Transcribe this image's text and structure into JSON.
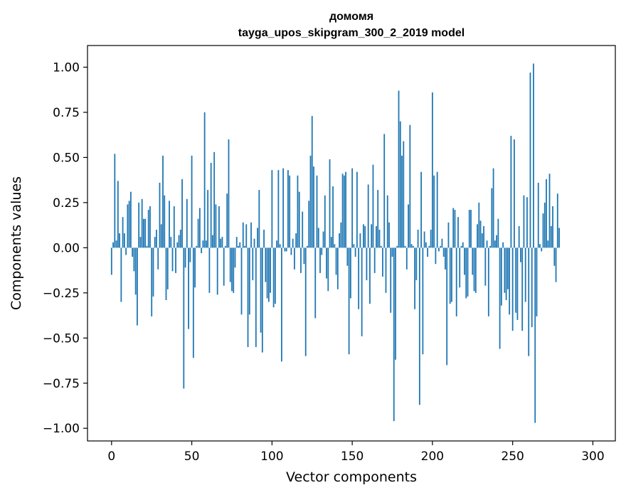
{
  "chart_data": {
    "type": "bar",
    "title_line1": "домомя",
    "title_line2": "tayga_upos_skipgram_300_2_2019 model",
    "xlabel": "Vector components",
    "ylabel": "Components values",
    "xlim": [
      -15,
      314
    ],
    "ylim": [
      -1.07,
      1.12
    ],
    "xticks": [
      0,
      50,
      100,
      150,
      200,
      250,
      300
    ],
    "yticks": [
      1.0,
      0.75,
      0.5,
      0.25,
      0.0,
      -0.25,
      -0.5,
      -0.75,
      -1.0
    ],
    "ytick_labels": [
      "1.00",
      "0.75",
      "0.50",
      "0.25",
      "0.00",
      "−0.25",
      "−0.50",
      "−0.75",
      "−1.00"
    ],
    "grid": false,
    "legend": "none",
    "bar_color": "#1f77b4",
    "values": [
      -0.15,
      0.03,
      0.52,
      0.04,
      0.37,
      0.08,
      -0.3,
      0.17,
      0.08,
      -0.04,
      0.24,
      0.26,
      0.31,
      -0.05,
      -0.13,
      -0.26,
      -0.43,
      0.25,
      0.06,
      0.27,
      0.16,
      0.16,
      0.01,
      0.21,
      0.23,
      -0.38,
      -0.27,
      0.06,
      0.1,
      -0.12,
      0.36,
      0.13,
      0.51,
      0.29,
      -0.29,
      -0.23,
      0.26,
      0.06,
      -0.13,
      0.23,
      -0.14,
      0.03,
      0.07,
      0.1,
      0.38,
      -0.78,
      -0.11,
      0.27,
      -0.45,
      -0.08,
      0.51,
      -0.61,
      -0.22,
      0.01,
      0.16,
      0.22,
      -0.03,
      0.04,
      0.75,
      0.04,
      0.32,
      -0.25,
      0.47,
      0.07,
      0.53,
      0.24,
      -0.26,
      0.23,
      0.05,
      0.06,
      -0.21,
      0.01,
      0.3,
      0.6,
      -0.19,
      -0.24,
      -0.25,
      -0.11,
      0.06,
      0.01,
      0.03,
      -0.37,
      0.14,
      0.01,
      0.13,
      -0.55,
      -0.37,
      0.14,
      -0.18,
      0.05,
      -0.55,
      0.11,
      0.32,
      -0.47,
      -0.58,
      0.1,
      -0.19,
      -0.28,
      -0.3,
      -0.25,
      0.43,
      -0.33,
      -0.31,
      0.04,
      0.43,
      0.02,
      -0.63,
      0.44,
      -0.02,
      -0.02,
      0.43,
      0.4,
      -0.04,
      0.05,
      -0.12,
      0.08,
      0.4,
      0.31,
      -0.14,
      0.2,
      -0.09,
      -0.6,
      0.01,
      0.26,
      0.51,
      0.73,
      0.45,
      -0.39,
      0.4,
      0.11,
      -0.14,
      -0.04,
      0.09,
      0.29,
      -0.17,
      -0.24,
      0.49,
      0.06,
      0.34,
      0.02,
      -0.15,
      -0.23,
      0.08,
      0.14,
      0.41,
      0.4,
      0.42,
      -0.1,
      -0.59,
      -0.28,
      0.44,
      0.02,
      -0.05,
      0.42,
      -0.34,
      0.08,
      -0.49,
      0.13,
      0.12,
      -0.18,
      0.35,
      -0.31,
      0.13,
      0.46,
      -0.14,
      0.12,
      0.32,
      0.1,
      0.01,
      -0.16,
      0.63,
      -0.25,
      0.29,
      0.14,
      -0.36,
      -0.05,
      -0.96,
      -0.62,
      0.01,
      0.87,
      0.7,
      0.51,
      0.59,
      0.01,
      -0.12,
      0.24,
      0.68,
      0.02,
      0.01,
      -0.34,
      -0.18,
      0.1,
      -0.87,
      0.42,
      -0.59,
      0.09,
      0.03,
      -0.05,
      0.01,
      0.1,
      0.86,
      0.4,
      -0.09,
      0.42,
      -0.02,
      0.01,
      0.05,
      -0.05,
      -0.12,
      -0.65,
      0.14,
      -0.31,
      -0.3,
      0.22,
      0.21,
      -0.38,
      0.17,
      -0.22,
      0.01,
      0.03,
      -0.15,
      -0.28,
      -0.27,
      0.21,
      0.21,
      -0.15,
      -0.24,
      -0.25,
      0.13,
      0.25,
      0.15,
      0.08,
      0.12,
      -0.21,
      0.04,
      -0.38,
      0.01,
      0.33,
      0.44,
      0.04,
      0.07,
      0.16,
      -0.56,
      -0.32,
      0.03,
      -0.25,
      -0.29,
      -0.23,
      -0.37,
      0.62,
      -0.46,
      0.6,
      -0.36,
      -0.4,
      0.12,
      -0.08,
      -0.46,
      0.29,
      -0.3,
      0.28,
      -0.6,
      0.97,
      -0.44,
      1.02,
      -0.97,
      -0.38,
      0.36,
      0.02,
      -0.02,
      0.19,
      0.25,
      0.38,
      0.04,
      0.41,
      0.12,
      0.23,
      -0.1,
      -0.19,
      0.3,
      0.11
    ]
  }
}
